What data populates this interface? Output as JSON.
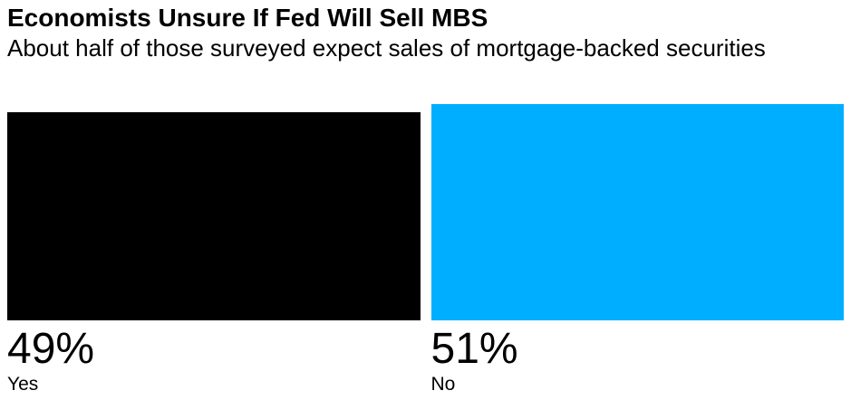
{
  "header": {
    "title": "Economists Unsure If Fed Will Sell MBS",
    "subtitle": "About half of those surveyed expect sales of mortgage-backed securities"
  },
  "chart_data": {
    "type": "bar",
    "orientation": "vertical",
    "title": "Economists Unsure If Fed Will Sell MBS",
    "subtitle": "About half of those surveyed expect sales of mortgage-backed securities",
    "categories": [
      "Yes",
      "No"
    ],
    "values": [
      49,
      51
    ],
    "value_labels": [
      "49%",
      "51%"
    ],
    "unit": "%",
    "series_colors": [
      "#000000",
      "#00AEFF"
    ],
    "ylim": [
      0,
      51
    ],
    "grid": false,
    "legend": false,
    "axis_lines": false,
    "background": "#ffffff"
  }
}
